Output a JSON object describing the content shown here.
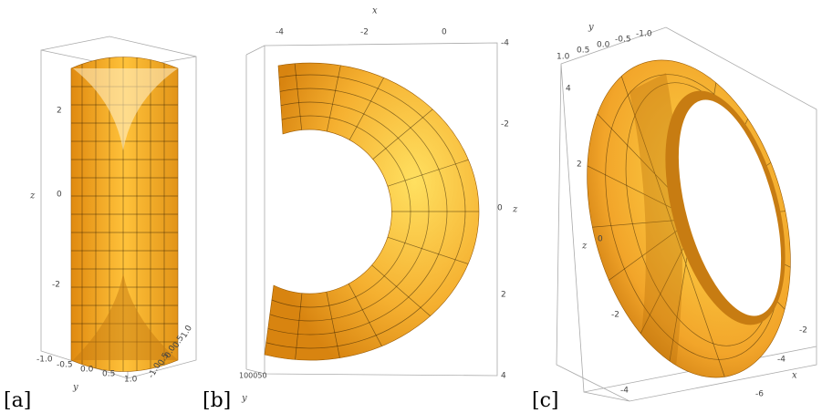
{
  "panels": [
    {
      "label": "[a]",
      "z": {
        "label": "z",
        "ticks": [
          "2",
          "0",
          "-2"
        ]
      },
      "y": {
        "label": "y",
        "ticks": [
          "-1.0",
          "-0.5",
          "0.0",
          "0.5",
          "1.0"
        ]
      },
      "x": {
        "ticks": [
          "-1.0",
          "-0.5",
          "0.0",
          "0.5",
          "1.0"
        ]
      }
    },
    {
      "label": "[b]",
      "x": {
        "label": "x",
        "ticks": [
          "-4",
          "-2",
          "0"
        ]
      },
      "z": {
        "label": "z",
        "ticks": [
          "-4",
          "-2",
          "0",
          "2",
          "4"
        ]
      },
      "y": {
        "label": "y",
        "ticks": [
          "100050"
        ]
      }
    },
    {
      "label": "[c]",
      "y": {
        "label": "y",
        "ticks": [
          "1.0",
          "0.5",
          "0.0",
          "-0.5",
          "-1.0"
        ]
      },
      "z": {
        "label": "z",
        "ticks": [
          "4",
          "2",
          "0",
          "-2",
          "-4"
        ]
      },
      "x": {
        "label": "x",
        "ticks": [
          "-2",
          "-4",
          "-6"
        ]
      }
    }
  ]
}
